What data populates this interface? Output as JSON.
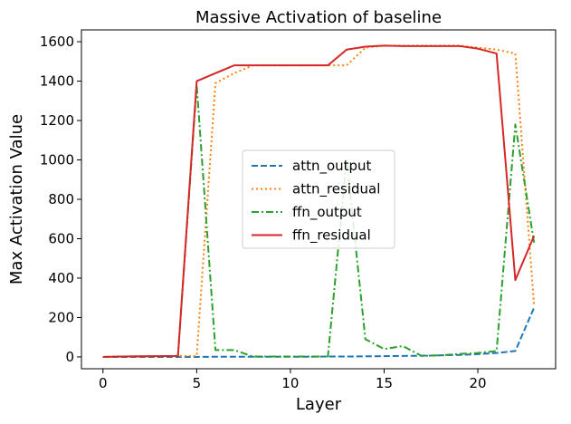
{
  "chart_data": {
    "type": "line",
    "title": "Massive Activation of baseline",
    "xlabel": "Layer",
    "ylabel": "Max Activation Value",
    "xlim": [
      -1.15,
      24.15
    ],
    "ylim": [
      -60,
      1660
    ],
    "xticks": [
      0,
      5,
      10,
      15,
      20
    ],
    "yticks": [
      0,
      200,
      400,
      600,
      800,
      1000,
      1200,
      1400,
      1600
    ],
    "grid": false,
    "legend_position": "center",
    "x": [
      0,
      1,
      2,
      3,
      4,
      5,
      6,
      7,
      8,
      9,
      10,
      11,
      12,
      13,
      14,
      15,
      16,
      17,
      18,
      19,
      20,
      21,
      22,
      23
    ],
    "series": [
      {
        "name": "attn_output",
        "color": "#1f77b4",
        "dash": "dashed",
        "values": [
          0,
          0,
          0,
          0,
          0,
          0,
          1,
          1,
          1,
          1,
          1,
          1,
          2,
          2,
          3,
          4,
          5,
          6,
          8,
          10,
          14,
          20,
          30,
          250
        ]
      },
      {
        "name": "attn_residual",
        "color": "#ff7f0e",
        "dash": "dotted",
        "values": [
          0,
          2,
          3,
          4,
          5,
          5,
          1390,
          1440,
          1480,
          1480,
          1480,
          1480,
          1480,
          1480,
          1570,
          1580,
          1580,
          1580,
          1580,
          1580,
          1570,
          1560,
          1540,
          260
        ]
      },
      {
        "name": "ffn_output",
        "color": "#2ca02c",
        "dash": "dashdot",
        "values": [
          0,
          2,
          3,
          4,
          5,
          1380,
          35,
          35,
          2,
          2,
          2,
          2,
          2,
          1000,
          90,
          40,
          55,
          5,
          8,
          15,
          20,
          30,
          1180,
          580
        ]
      },
      {
        "name": "ffn_residual",
        "color": "#d62728",
        "dash": "solid",
        "values": [
          0,
          2,
          3,
          4,
          5,
          1400,
          1440,
          1480,
          1480,
          1480,
          1480,
          1480,
          1480,
          1560,
          1575,
          1580,
          1578,
          1578,
          1578,
          1578,
          1565,
          1540,
          390,
          615
        ]
      }
    ]
  }
}
